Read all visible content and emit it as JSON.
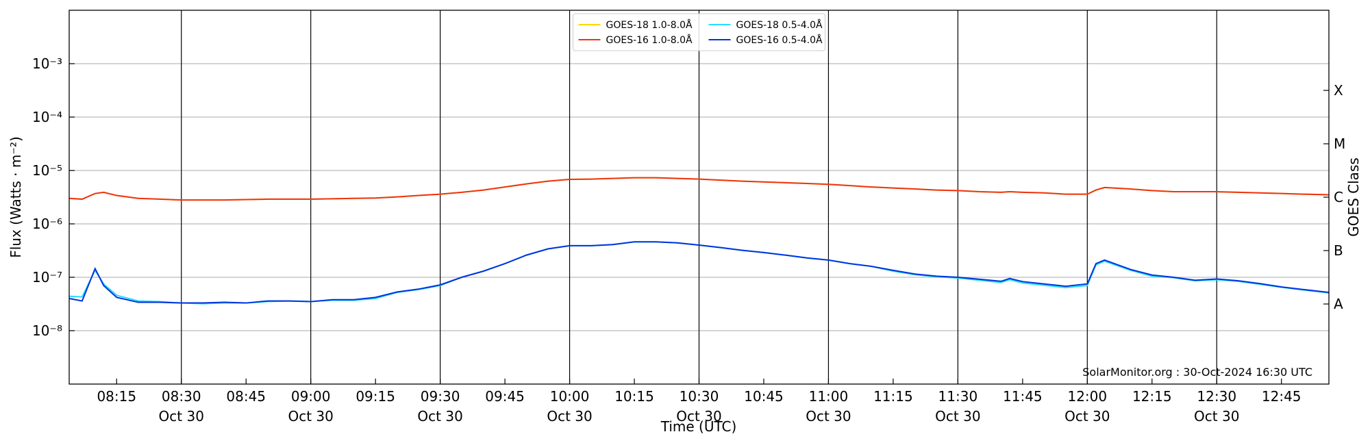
{
  "chart_data": {
    "type": "line",
    "log_y": true,
    "xlabel": "Time (UTC)",
    "ylabel": "Flux (Watts · m⁻²)",
    "y2label": "GOES Class",
    "annotation": "SolarMonitor.org : 30-Oct-2024 16:30 UTC",
    "legend": "upper center",
    "grid": true,
    "xlim": [
      "08:04",
      "12:56"
    ],
    "ylim": [
      1e-09,
      0.01
    ],
    "y2lim": [
      1e-09,
      0.01
    ],
    "xticks": [
      "08:15",
      {
        "value": "08:30",
        "label": "08:30",
        "date": "Oct 30"
      },
      "08:45",
      {
        "value": "09:00",
        "label": "09:00",
        "date": "Oct 30"
      },
      "09:15",
      {
        "value": "09:30",
        "label": "09:30",
        "date": "Oct 30"
      },
      "09:45",
      {
        "value": "10:00",
        "label": "10:00",
        "date": "Oct 30"
      },
      "10:15",
      {
        "value": "10:30",
        "label": "10:30",
        "date": "Oct 30"
      },
      "10:45",
      {
        "value": "11:00",
        "label": "11:00",
        "date": "Oct 30"
      },
      "11:15",
      {
        "value": "11:30",
        "label": "11:30",
        "date": "Oct 30"
      },
      "11:45",
      {
        "value": "12:00",
        "label": "12:00",
        "date": "Oct 30"
      },
      "12:15",
      {
        "value": "12:30",
        "label": "12:30",
        "date": "Oct 30"
      },
      "12:45"
    ],
    "yticks": [
      {
        "value": 1e-08,
        "label": "10⁻⁸"
      },
      {
        "value": 1e-07,
        "label": "10⁻⁷"
      },
      {
        "value": 1e-06,
        "label": "10⁻⁶"
      },
      {
        "value": 1e-05,
        "label": "10⁻⁵"
      },
      {
        "value": 0.0001,
        "label": "10⁻⁴"
      },
      {
        "value": 0.001,
        "label": "10⁻³"
      }
    ],
    "y2ticks": [
      {
        "value": 3.16e-08,
        "label": "A"
      },
      {
        "value": 3.16e-07,
        "label": "B"
      },
      {
        "value": 3.16e-06,
        "label": "C"
      },
      {
        "value": 3.16e-05,
        "label": "M"
      },
      {
        "value": 0.000316,
        "label": "X"
      }
    ],
    "x": [
      "08:04",
      "08:07",
      "08:10",
      "08:12",
      "08:15",
      "08:20",
      "08:25",
      "08:30",
      "08:35",
      "08:40",
      "08:45",
      "08:50",
      "08:55",
      "09:00",
      "09:05",
      "09:10",
      "09:15",
      "09:20",
      "09:25",
      "09:30",
      "09:35",
      "09:40",
      "09:45",
      "09:50",
      "09:55",
      "10:00",
      "10:05",
      "10:10",
      "10:15",
      "10:20",
      "10:25",
      "10:30",
      "10:35",
      "10:40",
      "10:45",
      "10:50",
      "10:55",
      "11:00",
      "11:05",
      "11:10",
      "11:15",
      "11:20",
      "11:25",
      "11:30",
      "11:35",
      "11:40",
      "11:42",
      "11:45",
      "11:50",
      "11:55",
      "12:00",
      "12:02",
      "12:04",
      "12:10",
      "12:15",
      "12:20",
      "12:25",
      "12:30",
      "12:35",
      "12:40",
      "12:45",
      "12:50",
      "12:56"
    ],
    "series": [
      {
        "name": "GOES-18 1.0-8.0Å",
        "color": "#ffd700",
        "values": [
          3e-06,
          2.9e-06,
          3.7e-06,
          3.9e-06,
          3.4e-06,
          3e-06,
          2.9e-06,
          2.8e-06,
          2.8e-06,
          2.8e-06,
          2.85e-06,
          2.9e-06,
          2.9e-06,
          2.9e-06,
          2.95e-06,
          3e-06,
          3.05e-06,
          3.2e-06,
          3.4e-06,
          3.6e-06,
          3.9e-06,
          4.3e-06,
          4.9e-06,
          5.6e-06,
          6.3e-06,
          6.8e-06,
          6.9e-06,
          7.1e-06,
          7.3e-06,
          7.3e-06,
          7.1e-06,
          6.9e-06,
          6.6e-06,
          6.3e-06,
          6.1e-06,
          5.9e-06,
          5.7e-06,
          5.5e-06,
          5.2e-06,
          4.9e-06,
          4.7e-06,
          4.5e-06,
          4.3e-06,
          4.2e-06,
          4e-06,
          3.9e-06,
          4e-06,
          3.9e-06,
          3.8e-06,
          3.6e-06,
          3.6e-06,
          4.3e-06,
          4.8e-06,
          4.5e-06,
          4.2e-06,
          4e-06,
          4e-06,
          4e-06,
          3.9e-06,
          3.8e-06,
          3.7e-06,
          3.6e-06,
          3.5e-06
        ]
      },
      {
        "name": "GOES-16 1.0-8.0Å",
        "color": "#ee3311",
        "values": [
          3e-06,
          2.9e-06,
          3.7e-06,
          3.9e-06,
          3.4e-06,
          3e-06,
          2.9e-06,
          2.8e-06,
          2.8e-06,
          2.8e-06,
          2.85e-06,
          2.9e-06,
          2.9e-06,
          2.9e-06,
          2.95e-06,
          3e-06,
          3.05e-06,
          3.2e-06,
          3.4e-06,
          3.6e-06,
          3.9e-06,
          4.3e-06,
          4.9e-06,
          5.6e-06,
          6.3e-06,
          6.8e-06,
          6.9e-06,
          7.1e-06,
          7.3e-06,
          7.3e-06,
          7.1e-06,
          6.9e-06,
          6.6e-06,
          6.3e-06,
          6.1e-06,
          5.9e-06,
          5.7e-06,
          5.5e-06,
          5.2e-06,
          4.9e-06,
          4.7e-06,
          4.5e-06,
          4.3e-06,
          4.2e-06,
          4e-06,
          3.9e-06,
          4e-06,
          3.9e-06,
          3.8e-06,
          3.6e-06,
          3.6e-06,
          4.3e-06,
          4.8e-06,
          4.5e-06,
          4.2e-06,
          4e-06,
          4e-06,
          4e-06,
          3.9e-06,
          3.8e-06,
          3.7e-06,
          3.6e-06,
          3.5e-06
        ]
      },
      {
        "name": "GOES-18 0.5-4.0Å",
        "color": "#22ddff",
        "values": [
          4.4e-08,
          4.3e-08,
          1.35e-07,
          7.5e-08,
          4.6e-08,
          3.6e-08,
          3.5e-08,
          3.3e-08,
          3.2e-08,
          3.3e-08,
          3.3e-08,
          3.5e-08,
          3.6e-08,
          3.5e-08,
          3.7e-08,
          3.7e-08,
          4e-08,
          5.2e-08,
          5.9e-08,
          7e-08,
          1e-07,
          1.3e-07,
          1.8e-07,
          2.6e-07,
          3.4e-07,
          3.9e-07,
          3.9e-07,
          4.1e-07,
          4.6e-07,
          4.6e-07,
          4.4e-07,
          4e-07,
          3.6e-07,
          3.2e-07,
          2.9e-07,
          2.6e-07,
          2.3e-07,
          2.1e-07,
          1.8e-07,
          1.6e-07,
          1.3e-07,
          1.12e-07,
          1.02e-07,
          9.7e-08,
          8.8e-08,
          8e-08,
          9e-08,
          7.8e-08,
          7.1e-08,
          6.4e-08,
          7e-08,
          1.7e-07,
          2e-07,
          1.35e-07,
          1.05e-07,
          9.8e-08,
          8.6e-08,
          9e-08,
          8.4e-08,
          7.4e-08,
          6.5e-08,
          5.8e-08,
          5.1e-08
        ]
      },
      {
        "name": "GOES-16 0.5-4.0Å",
        "color": "#0033dd",
        "values": [
          4e-08,
          3.6e-08,
          1.45e-07,
          7e-08,
          4.2e-08,
          3.4e-08,
          3.4e-08,
          3.3e-08,
          3.3e-08,
          3.4e-08,
          3.3e-08,
          3.6e-08,
          3.6e-08,
          3.5e-08,
          3.8e-08,
          3.8e-08,
          4.2e-08,
          5.3e-08,
          6e-08,
          7.2e-08,
          1e-07,
          1.3e-07,
          1.8e-07,
          2.6e-07,
          3.4e-07,
          3.9e-07,
          3.9e-07,
          4.1e-07,
          4.6e-07,
          4.6e-07,
          4.4e-07,
          4e-07,
          3.6e-07,
          3.2e-07,
          2.9e-07,
          2.6e-07,
          2.3e-07,
          2.1e-07,
          1.8e-07,
          1.6e-07,
          1.35e-07,
          1.15e-07,
          1.05e-07,
          1e-07,
          9.2e-08,
          8.4e-08,
          9.5e-08,
          8.3e-08,
          7.5e-08,
          6.8e-08,
          7.5e-08,
          1.8e-07,
          2.1e-07,
          1.4e-07,
          1.1e-07,
          1e-07,
          8.8e-08,
          9.3e-08,
          8.6e-08,
          7.6e-08,
          6.6e-08,
          5.9e-08,
          5.2e-08
        ]
      }
    ]
  }
}
